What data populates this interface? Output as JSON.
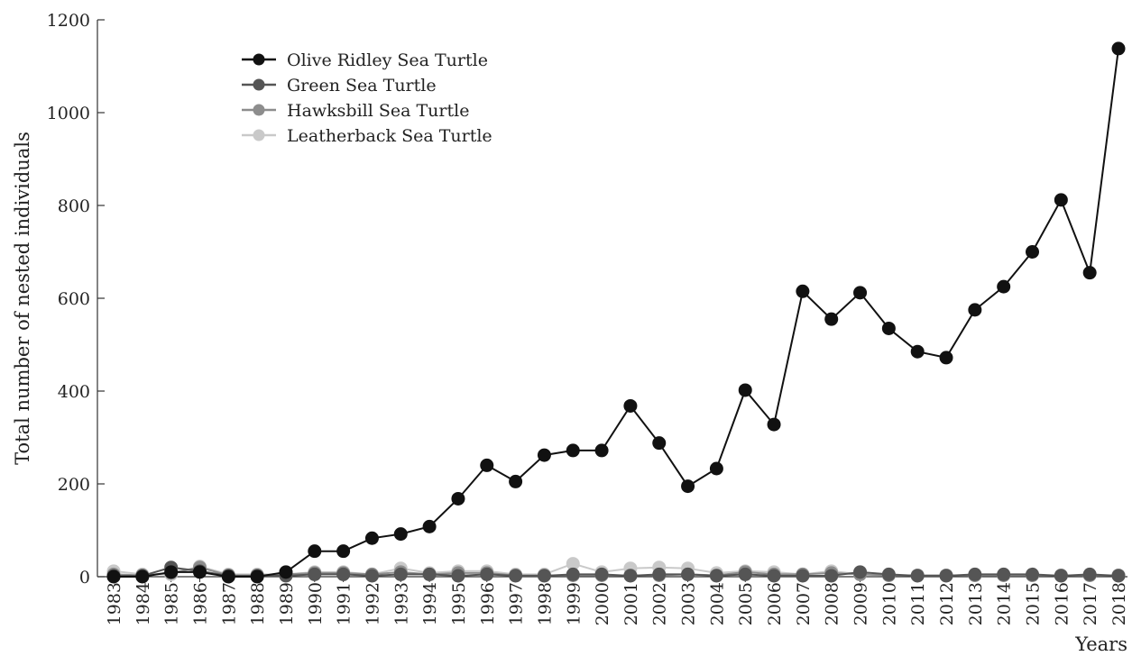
{
  "chart_data": {
    "type": "line",
    "title": "",
    "xlabel": "Years",
    "ylabel": "Total number of nested individuals",
    "x": [
      "1983",
      "1984",
      "1985",
      "1986",
      "1987",
      "1988",
      "1989",
      "1990",
      "1991",
      "1992",
      "1993",
      "1994",
      "1995",
      "1996",
      "1997",
      "1998",
      "1999",
      "2000",
      "2001",
      "2002",
      "2003",
      "2004",
      "2005",
      "2006",
      "2007",
      "2008",
      "2009",
      "2010",
      "2011",
      "2012",
      "2013",
      "2014",
      "2015",
      "2016",
      "2017",
      "2018"
    ],
    "ylim": [
      0,
      1200
    ],
    "yticks": [
      "0",
      "200",
      "400",
      "600",
      "800",
      "1000",
      "1200"
    ],
    "grid": false,
    "legend_position": "top-left",
    "series": [
      {
        "name": "Olive Ridley Sea Turtle",
        "color": "#111111",
        "values": [
          0,
          0,
          10,
          10,
          0,
          0,
          10,
          55,
          55,
          83,
          92,
          108,
          168,
          240,
          205,
          262,
          272,
          272,
          368,
          288,
          195,
          233,
          402,
          328,
          615,
          555,
          612,
          535,
          485,
          472,
          575,
          625,
          700,
          812,
          655,
          1138
        ]
      },
      {
        "name": "Green Sea Turtle",
        "color": "#555555",
        "values": [
          2,
          2,
          20,
          12,
          2,
          2,
          2,
          5,
          5,
          2,
          5,
          5,
          2,
          5,
          2,
          2,
          5,
          5,
          2,
          5,
          5,
          2,
          5,
          2,
          2,
          2,
          10,
          5,
          2,
          2,
          5,
          5,
          5,
          2,
          5,
          2
        ]
      },
      {
        "name": "Hawksbill Sea Turtle",
        "color": "#8d8d8d",
        "values": [
          5,
          3,
          8,
          20,
          3,
          3,
          5,
          8,
          8,
          5,
          10,
          5,
          8,
          8,
          3,
          3,
          3,
          3,
          3,
          3,
          5,
          3,
          10,
          5,
          5,
          8,
          5,
          3,
          3,
          3,
          3,
          3,
          3,
          3,
          3,
          3
        ]
      },
      {
        "name": "Leatherback Sea Turtle",
        "color": "#c9c9c9",
        "values": [
          12,
          5,
          5,
          22,
          5,
          5,
          5,
          10,
          10,
          5,
          18,
          8,
          12,
          12,
          5,
          5,
          28,
          10,
          18,
          20,
          18,
          8,
          12,
          10,
          5,
          12,
          5,
          3,
          3,
          3,
          3,
          3,
          3,
          3,
          3,
          3
        ]
      }
    ]
  }
}
